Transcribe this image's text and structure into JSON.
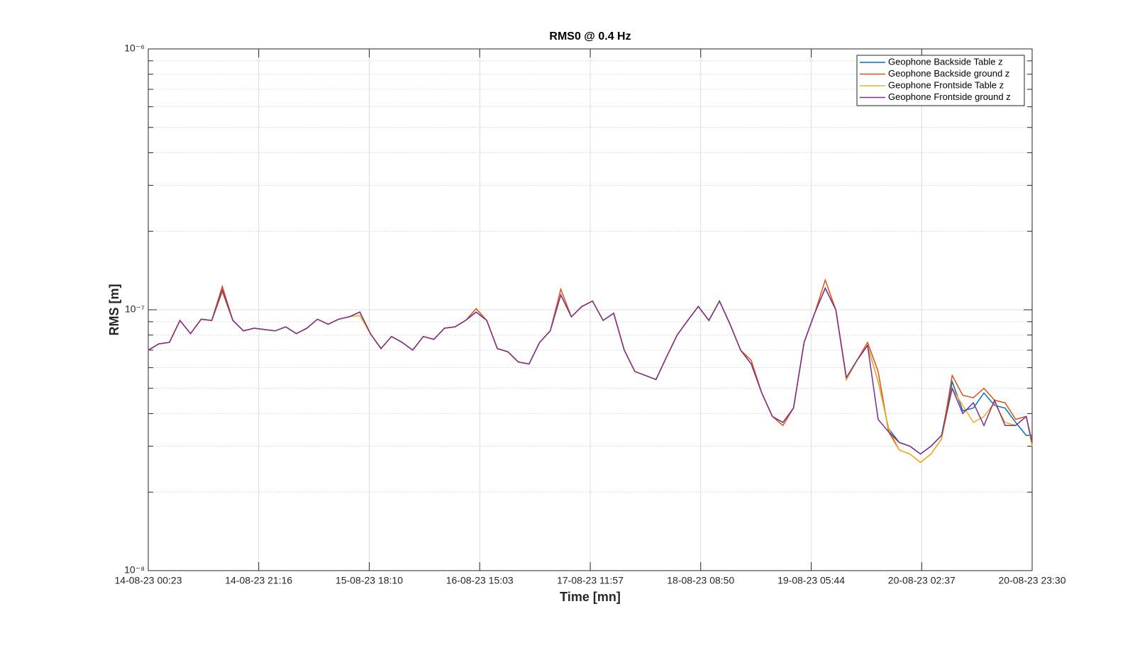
{
  "chart_data": {
    "type": "line",
    "title": "RMS0 @ 0.4 Hz",
    "xlabel": "Time [mn]",
    "ylabel": "RMS [m]",
    "log_y": true,
    "grid": true,
    "legend": "upper right",
    "x": [
      "14-08-23 00:23",
      "14-08-23 02:23",
      "14-08-23 04:23",
      "14-08-23 06:23",
      "14-08-23 08:23",
      "14-08-23 10:23",
      "14-08-23 12:23",
      "14-08-23 14:23",
      "14-08-23 16:23",
      "14-08-23 18:23",
      "14-08-23 20:23",
      "14-08-23 22:23",
      "15-08-23 00:23",
      "15-08-23 02:23",
      "15-08-23 04:23",
      "15-08-23 06:23",
      "15-08-23 08:23",
      "15-08-23 10:23",
      "15-08-23 12:23",
      "15-08-23 14:23",
      "15-08-23 16:23",
      "15-08-23 18:23",
      "15-08-23 20:23",
      "15-08-23 22:23",
      "16-08-23 00:23",
      "16-08-23 02:23",
      "16-08-23 04:23",
      "16-08-23 06:23",
      "16-08-23 08:23",
      "16-08-23 10:23",
      "16-08-23 12:23",
      "16-08-23 14:23",
      "16-08-23 16:23",
      "16-08-23 18:23",
      "16-08-23 20:23",
      "16-08-23 22:23",
      "17-08-23 00:23",
      "17-08-23 02:23",
      "17-08-23 04:23",
      "17-08-23 06:23",
      "17-08-23 08:23",
      "17-08-23 10:23",
      "17-08-23 12:23",
      "17-08-23 14:23",
      "17-08-23 16:23",
      "17-08-23 18:23",
      "17-08-23 20:23",
      "17-08-23 22:23",
      "18-08-23 00:23",
      "18-08-23 02:23",
      "18-08-23 04:23",
      "18-08-23 06:23",
      "18-08-23 08:23",
      "18-08-23 10:23",
      "18-08-23 12:23",
      "18-08-23 14:23",
      "18-08-23 16:23",
      "18-08-23 18:23",
      "18-08-23 20:23",
      "18-08-23 22:23",
      "19-08-23 00:23",
      "19-08-23 02:23",
      "19-08-23 04:23",
      "19-08-23 06:23",
      "19-08-23 08:23",
      "19-08-23 10:23",
      "19-08-23 12:23",
      "19-08-23 14:23",
      "19-08-23 16:23",
      "19-08-23 18:23",
      "19-08-23 20:23",
      "19-08-23 22:23",
      "20-08-23 00:23",
      "20-08-23 02:23",
      "20-08-23 04:23",
      "20-08-23 06:23",
      "20-08-23 08:23",
      "20-08-23 10:23",
      "20-08-23 12:23",
      "20-08-23 14:23",
      "20-08-23 16:23",
      "20-08-23 18:23",
      "20-08-23 20:23",
      "20-08-23 22:23",
      "20-08-23 23:30"
    ],
    "series": [
      {
        "name": "Geophone Backside Table z",
        "color": "#0072bd",
        "values": [
          7e-08,
          7.4e-08,
          7.5e-08,
          9.1e-08,
          8.1e-08,
          9.2e-08,
          9.1e-08,
          1.17e-07,
          9.1e-08,
          8.3e-08,
          8.5e-08,
          8.4e-08,
          8.3e-08,
          8.6e-08,
          8.1e-08,
          8.5e-08,
          9.2e-08,
          8.8e-08,
          9.2e-08,
          9.4e-08,
          9.8e-08,
          8.1e-08,
          7.1e-08,
          7.9e-08,
          7.5e-08,
          7e-08,
          7.9e-08,
          7.7e-08,
          8.5e-08,
          8.6e-08,
          9.1e-08,
          9.8e-08,
          9.1e-08,
          7.1e-08,
          6.9e-08,
          6.3e-08,
          6.2e-08,
          7.5e-08,
          8.3e-08,
          1.14e-07,
          9.4e-08,
          1.03e-07,
          1.08e-07,
          9.1e-08,
          9.7e-08,
          7e-08,
          5.8e-08,
          5.6e-08,
          5.4e-08,
          6.6e-08,
          8e-08,
          9.1e-08,
          1.03e-07,
          9.1e-08,
          1.08e-07,
          8.8e-08,
          7e-08,
          6.2e-08,
          4.8e-08,
          3.9e-08,
          3.7e-08,
          4.2e-08,
          7.5e-08,
          9.7e-08,
          1.21e-07,
          1e-07,
          5.4e-08,
          6.4e-08,
          7.3e-08,
          5.3e-08,
          3.5e-08,
          3.1e-08,
          3e-08,
          2.8e-08,
          3e-08,
          3.3e-08,
          5.3e-08,
          4.1e-08,
          4.2e-08,
          4.8e-08,
          4.3e-08,
          4.2e-08,
          3.7e-08,
          3.3e-08,
          3.3e-08
        ]
      },
      {
        "name": "Geophone Backside ground z",
        "color": "#d95319",
        "values": [
          7e-08,
          7.4e-08,
          7.5e-08,
          9.1e-08,
          8.1e-08,
          9.2e-08,
          9.1e-08,
          1.23e-07,
          9.1e-08,
          8.3e-08,
          8.5e-08,
          8.4e-08,
          8.3e-08,
          8.6e-08,
          8.1e-08,
          8.5e-08,
          9.2e-08,
          8.8e-08,
          9.2e-08,
          9.4e-08,
          9.8e-08,
          8.1e-08,
          7.1e-08,
          7.9e-08,
          7.5e-08,
          7e-08,
          7.9e-08,
          7.7e-08,
          8.5e-08,
          8.6e-08,
          9.1e-08,
          1.01e-07,
          9.1e-08,
          7.1e-08,
          6.9e-08,
          6.3e-08,
          6.2e-08,
          7.5e-08,
          8.3e-08,
          1.2e-07,
          9.4e-08,
          1.03e-07,
          1.08e-07,
          9.1e-08,
          9.7e-08,
          7e-08,
          5.8e-08,
          5.6e-08,
          5.4e-08,
          6.6e-08,
          8e-08,
          9.1e-08,
          1.03e-07,
          9.1e-08,
          1.08e-07,
          8.8e-08,
          7e-08,
          6.4e-08,
          4.8e-08,
          3.9e-08,
          3.6e-08,
          4.2e-08,
          7.5e-08,
          9.7e-08,
          1.3e-07,
          1e-07,
          5.4e-08,
          6.4e-08,
          7.5e-08,
          5.8e-08,
          3.4e-08,
          2.9e-08,
          2.8e-08,
          2.6e-08,
          2.8e-08,
          3.2e-08,
          5.6e-08,
          4.7e-08,
          4.6e-08,
          5e-08,
          4.5e-08,
          4.4e-08,
          3.8e-08,
          3.9e-08,
          3e-08
        ]
      },
      {
        "name": "Geophone Frontside Table z",
        "color": "#edb120",
        "values": [
          7e-08,
          7.4e-08,
          7.5e-08,
          9.1e-08,
          8.1e-08,
          9.2e-08,
          9.1e-08,
          1.17e-07,
          9.1e-08,
          8.3e-08,
          8.5e-08,
          8.4e-08,
          8.3e-08,
          8.6e-08,
          8.1e-08,
          8.5e-08,
          9.2e-08,
          8.8e-08,
          9.2e-08,
          9.4e-08,
          9.5e-08,
          8.1e-08,
          7.1e-08,
          7.9e-08,
          7.5e-08,
          7e-08,
          7.9e-08,
          7.7e-08,
          8.5e-08,
          8.6e-08,
          9.1e-08,
          9.8e-08,
          9.1e-08,
          7.1e-08,
          6.9e-08,
          6.3e-08,
          6.2e-08,
          7.5e-08,
          8.3e-08,
          1.14e-07,
          9.4e-08,
          1.03e-07,
          1.08e-07,
          9.1e-08,
          9.7e-08,
          7e-08,
          5.8e-08,
          5.6e-08,
          5.4e-08,
          6.6e-08,
          8e-08,
          9.1e-08,
          1.03e-07,
          9.1e-08,
          1.08e-07,
          8.8e-08,
          7e-08,
          6.2e-08,
          4.8e-08,
          3.9e-08,
          3.7e-08,
          4.2e-08,
          7.5e-08,
          9.7e-08,
          1.21e-07,
          1e-07,
          5.4e-08,
          6.4e-08,
          7.3e-08,
          5.3e-08,
          3.5e-08,
          2.9e-08,
          2.8e-08,
          2.6e-08,
          2.8e-08,
          3.2e-08,
          5e-08,
          4.3e-08,
          3.7e-08,
          3.9e-08,
          4.4e-08,
          3.7e-08,
          3.6e-08,
          3.9e-08,
          3e-08
        ]
      },
      {
        "name": "Geophone Frontside ground z",
        "color": "#7e2f8e",
        "values": [
          7e-08,
          7.4e-08,
          7.5e-08,
          9.1e-08,
          8.1e-08,
          9.2e-08,
          9.1e-08,
          1.19e-07,
          9.1e-08,
          8.3e-08,
          8.5e-08,
          8.4e-08,
          8.3e-08,
          8.6e-08,
          8.1e-08,
          8.5e-08,
          9.2e-08,
          8.8e-08,
          9.2e-08,
          9.4e-08,
          9.8e-08,
          8.1e-08,
          7.1e-08,
          7.9e-08,
          7.5e-08,
          7e-08,
          7.9e-08,
          7.7e-08,
          8.5e-08,
          8.6e-08,
          9.1e-08,
          9.8e-08,
          9.1e-08,
          7.1e-08,
          6.9e-08,
          6.3e-08,
          6.2e-08,
          7.5e-08,
          8.3e-08,
          1.14e-07,
          9.4e-08,
          1.03e-07,
          1.08e-07,
          9.1e-08,
          9.7e-08,
          7e-08,
          5.8e-08,
          5.6e-08,
          5.4e-08,
          6.6e-08,
          8e-08,
          9.1e-08,
          1.03e-07,
          9.1e-08,
          1.08e-07,
          8.8e-08,
          7e-08,
          6.2e-08,
          4.8e-08,
          3.9e-08,
          3.7e-08,
          4.2e-08,
          7.5e-08,
          9.7e-08,
          1.21e-07,
          1e-07,
          5.5e-08,
          6.4e-08,
          7.3e-08,
          3.8e-08,
          3.4e-08,
          3.1e-08,
          3e-08,
          2.8e-08,
          3e-08,
          3.3e-08,
          5e-08,
          4e-08,
          4.4e-08,
          3.6e-08,
          4.5e-08,
          3.6e-08,
          3.6e-08,
          3.9e-08,
          3.1e-08
        ]
      }
    ],
    "xlim": [
      "14-08-23 00:23",
      "20-08-23 23:30"
    ],
    "xticks": [
      "14-08-23 00:23",
      "14-08-23 21:16",
      "15-08-23 18:10",
      "16-08-23 15:03",
      "17-08-23 11:57",
      "18-08-23 08:50",
      "19-08-23 05:44",
      "20-08-23 02:37",
      "20-08-23 23:30"
    ],
    "ylim": [
      1e-08,
      1e-06
    ],
    "yticks": [
      {
        "value": 1e-08,
        "label": "10⁻⁸"
      },
      {
        "value": 1e-07,
        "label": "10⁻⁷"
      },
      {
        "value": 1e-06,
        "label": "10⁻⁶"
      }
    ],
    "yminorticks": [
      2e-08,
      3e-08,
      4e-08,
      5e-08,
      6e-08,
      7e-08,
      8e-08,
      9e-08,
      2e-07,
      3e-07,
      4e-07,
      5e-07,
      6e-07,
      7e-07,
      8e-07,
      9e-07
    ]
  }
}
